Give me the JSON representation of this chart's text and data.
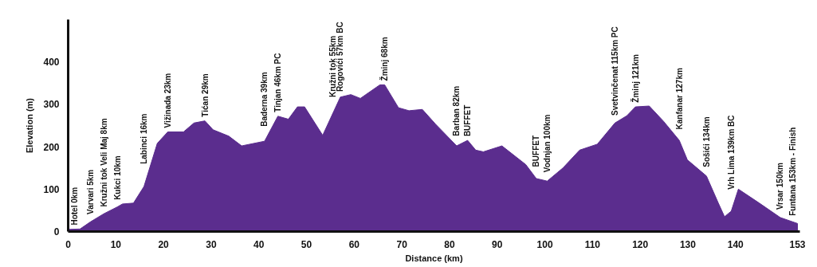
{
  "chart_data": {
    "type": "area",
    "xlabel": "Distance (km)",
    "ylabel": "Elevation (m)",
    "color": "#5b2d8e",
    "grid": false,
    "x": [
      0,
      2.5,
      4.7,
      7.5,
      10.3,
      11.4,
      13.7,
      15.9,
      18.7,
      20.9,
      24.2,
      26.4,
      28.7,
      30.4,
      33.7,
      36.4,
      41.2,
      44,
      46.2,
      48.1,
      49.6,
      53.4,
      57.1,
      59.3,
      61.3,
      65.4,
      66.4,
      69.3,
      71.5,
      74.3,
      77.1,
      81.5,
      83.8,
      85.5,
      87.1,
      91,
      96,
      98.2,
      100.5,
      103.8,
      107.3,
      111,
      114.7,
      117.2,
      119,
      121.9,
      124.9,
      128.2,
      129.9,
      133.9,
      136.4,
      137.7,
      139.1,
      140.6,
      145,
      149.4,
      153
    ],
    "values": [
      5,
      6,
      23,
      42,
      58,
      65,
      67,
      106,
      208,
      235,
      235,
      256,
      261,
      240,
      225,
      202,
      213,
      272,
      265,
      294,
      294,
      227,
      317,
      323,
      314,
      346,
      346,
      292,
      285,
      288,
      253,
      202,
      215,
      192,
      188,
      202,
      158,
      125,
      119,
      150,
      192,
      206,
      256,
      273,
      294,
      296,
      260,
      215,
      169,
      131,
      67,
      35,
      48,
      100,
      67,
      33,
      19
    ],
    "xlim": [
      0,
      153.5
    ],
    "ylim": [
      0,
      500
    ],
    "xticks": [
      0,
      10,
      20,
      30,
      40,
      50,
      60,
      70,
      80,
      90,
      100,
      110,
      120,
      130,
      140,
      153
    ],
    "yticks": [
      0,
      100,
      200,
      300,
      400
    ],
    "annotations": [
      {
        "text": "Hotel 0km",
        "x": 1.3,
        "y": 5
      },
      {
        "text": "Varvari 5km",
        "x": 4.7,
        "y": 23
      },
      {
        "text": "Kružni tok Veli Maj 8km",
        "x": 7.5,
        "y": 42
      },
      {
        "text": "Kukci 10km",
        "x": 10.3,
        "y": 58
      },
      {
        "text": "Labinci 16km",
        "x": 15.9,
        "y": 106
      },
      {
        "text": "Vižinada 23km",
        "x": 20.9,
        "y": 235
      },
      {
        "text": "Tićan 29km",
        "x": 28.7,
        "y": 261
      },
      {
        "text": "Baderna 39km",
        "x": 41.2,
        "y": 213
      },
      {
        "text": "Tinjan 46km PC",
        "x": 44,
        "y": 272
      },
      {
        "text": "Kružni tok 55km",
        "x": 55.5,
        "y": 278
      },
      {
        "text": "Rogovići 57km BC",
        "x": 57.1,
        "y": 317
      },
      {
        "text": "Žminj 68km",
        "x": 66.4,
        "y": 346
      },
      {
        "text": "Barban 82km",
        "x": 81.5,
        "y": 202
      },
      {
        "text": "BUFFET",
        "x": 83.8,
        "y": 215
      },
      {
        "text": "BUFFET",
        "x": 98.2,
        "y": 125
      },
      {
        "text": "Vodnjan 100km",
        "x": 100.5,
        "y": 119
      },
      {
        "text": "Svetvinčenat 115km PC",
        "x": 114.7,
        "y": 256
      },
      {
        "text": "Žminj 121km",
        "x": 119,
        "y": 294
      },
      {
        "text": "Kanfanar 127km",
        "x": 128.2,
        "y": 215
      },
      {
        "text": "Sošići 134km",
        "x": 133.9,
        "y": 131
      },
      {
        "text": "Vrh Lima 139km BC",
        "x": 139.1,
        "y": 48
      },
      {
        "text": "Vrsar 150km",
        "x": 149.4,
        "y": 33
      },
      {
        "text": "Funtana 153km - Finish",
        "x": 152,
        "y": 23
      }
    ]
  }
}
